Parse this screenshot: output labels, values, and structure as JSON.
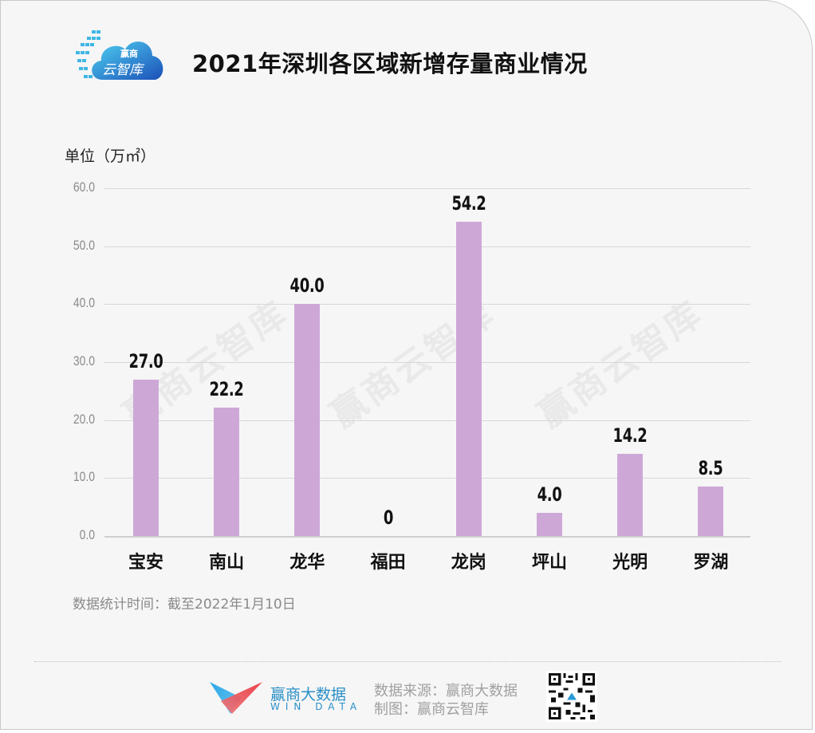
{
  "header": {
    "logo_line1": "赢商",
    "logo_line2": "云智库",
    "title": "2021年深圳各区域新增存量商业情况"
  },
  "chart": {
    "unit_label": "单位（万㎡）",
    "y_ticks": [
      "60.0",
      "50.0",
      "40.0",
      "30.0",
      "20.0",
      "10.0",
      "0.0"
    ],
    "watermark": "赢商云智库",
    "bar_color": "#cda8d7",
    "note": "数据统计时间：截至2022年1月10日"
  },
  "chart_data": {
    "type": "bar",
    "title": "2021年深圳各区域新增存量商业情况",
    "xlabel": "",
    "ylabel": "单位（万㎡）",
    "ylim": [
      0,
      60
    ],
    "y_ticks": [
      0,
      10,
      20,
      30,
      40,
      50,
      60
    ],
    "grid": true,
    "legend": null,
    "categories": [
      "宝安",
      "南山",
      "龙华",
      "福田",
      "龙岗",
      "坪山",
      "光明",
      "罗湖"
    ],
    "values": [
      27.0,
      22.2,
      40.0,
      0,
      54.2,
      4.0,
      14.2,
      8.5
    ],
    "data_labels": [
      "27.0",
      "22.2",
      "40.0",
      "0",
      "54.2",
      "4.0",
      "14.2",
      "8.5"
    ],
    "annotation": "数据统计时间：截至2022年1月10日"
  },
  "footer": {
    "brand_name": "赢商大数据",
    "brand_sub": "WIN DATA",
    "source_line": "数据来源：赢商大数据",
    "made_by_line": "制图：赢商云智库"
  }
}
